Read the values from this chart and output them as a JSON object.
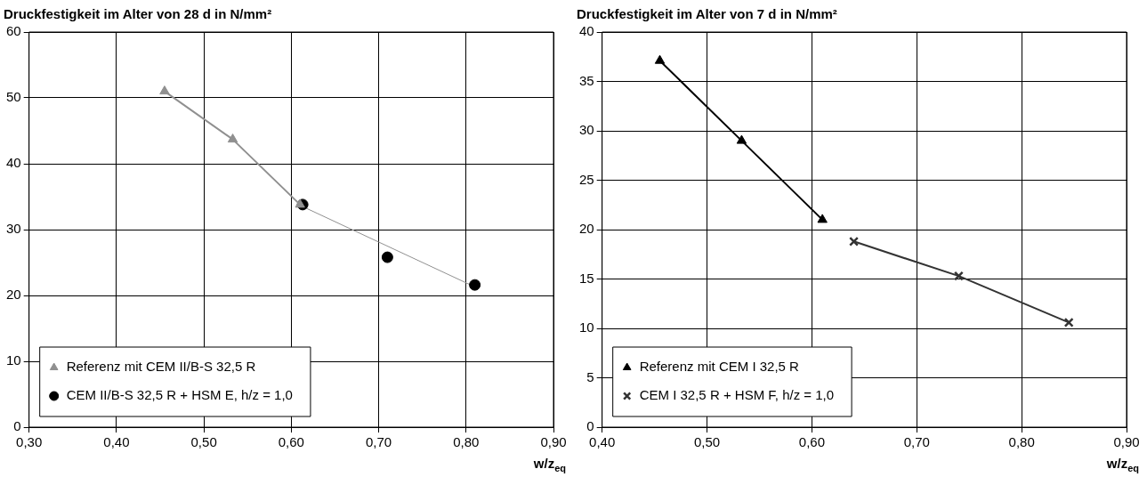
{
  "chart_data": [
    {
      "type": "scatter",
      "title": "Druckfestigkeit im Alter von 28 d in N/mm²",
      "xlabel": "w/z$_{eq}$",
      "xlim": [
        0.3,
        0.9
      ],
      "xticks": [
        {
          "value": 0.3,
          "label": "0,30"
        },
        {
          "value": 0.4,
          "label": "0,40"
        },
        {
          "value": 0.5,
          "label": "0,50"
        },
        {
          "value": 0.6,
          "label": "0,60"
        },
        {
          "value": 0.7,
          "label": "0,70"
        },
        {
          "value": 0.8,
          "label": "0,80"
        },
        {
          "value": 0.9,
          "label": "0,90"
        }
      ],
      "ylim": [
        0,
        60
      ],
      "yticks": [
        0,
        10,
        20,
        30,
        40,
        50,
        60
      ],
      "grid": true,
      "legend": "bottom left",
      "series": [
        {
          "name": "Referenz mit CEM II/B-S 32,5 R",
          "type": "line",
          "color": "#909090",
          "marker": "triangle",
          "x": [
            0.455,
            0.533,
            0.61
          ],
          "values": [
            51,
            43.7,
            33.8
          ]
        },
        {
          "name": "CEM II/B-S 32,5 R + HSM E, h/z = 1,0",
          "type": "scatter",
          "color": "#000000",
          "marker": "circle",
          "x": [
            0.613,
            0.71,
            0.81
          ],
          "values": [
            33.8,
            25.8,
            21.6
          ]
        },
        {
          "type": "line",
          "color": "#909090",
          "marker": "none",
          "x": [
            0.613,
            0.81
          ],
          "values": [
            33.5,
            21.3
          ]
        }
      ]
    },
    {
      "type": "scatter",
      "title": "Druckfestigkeit im Alter von 7 d in N/mm²",
      "xlabel": "w/z$_{eq}$",
      "xlim": [
        0.4,
        0.9
      ],
      "xticks": [
        {
          "value": 0.4,
          "label": "0,40"
        },
        {
          "value": 0.5,
          "label": "0,50"
        },
        {
          "value": 0.6,
          "label": "0,60"
        },
        {
          "value": 0.7,
          "label": "0,70"
        },
        {
          "value": 0.8,
          "label": "0,80"
        },
        {
          "value": 0.9,
          "label": "0,90"
        }
      ],
      "ylim": [
        0,
        40
      ],
      "yticks": [
        0,
        5,
        10,
        15,
        20,
        25,
        30,
        35,
        40
      ],
      "grid": true,
      "legend": "bottom left",
      "series": [
        {
          "name": "Referenz mit CEM I 32,5 R",
          "type": "line",
          "color": "#000000",
          "marker": "triangle",
          "x": [
            0.455,
            0.533,
            0.61
          ],
          "values": [
            37.1,
            29,
            21
          ]
        },
        {
          "name": "CEM I 32,5 R + HSM F, h/z = 1,0",
          "type": "line",
          "color": "#333333",
          "marker": "cross",
          "x": [
            0.64,
            0.74,
            0.845
          ],
          "values": [
            18.8,
            15.3,
            10.6
          ]
        }
      ]
    }
  ]
}
